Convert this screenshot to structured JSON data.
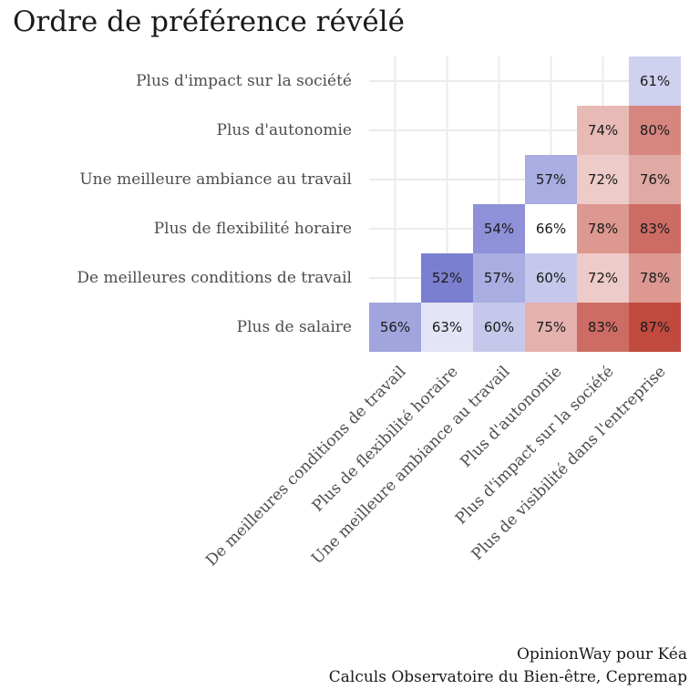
{
  "chart_data": {
    "type": "heatmap",
    "title": "Ordre de préférence révélé",
    "rows": [
      "Plus d'impact sur la société",
      "Plus d'autonomie",
      "Une meilleure ambiance au travail",
      "Plus de flexibilité horaire",
      "De meilleures conditions de travail",
      "Plus de salaire"
    ],
    "columns": [
      "De meilleures conditions de travail",
      "Plus de flexibilité horaire",
      "Une meilleure ambiance au travail",
      "Plus d'autonomie",
      "Plus d'impact sur la société",
      "Plus de visibilité dans l'entreprise"
    ],
    "values": [
      [
        null,
        null,
        null,
        null,
        null,
        61
      ],
      [
        null,
        null,
        null,
        null,
        74,
        80
      ],
      [
        null,
        null,
        null,
        57,
        72,
        76
      ],
      [
        null,
        null,
        54,
        66,
        78,
        83
      ],
      [
        null,
        52,
        57,
        60,
        72,
        78
      ],
      [
        56,
        63,
        60,
        75,
        83,
        87
      ]
    ],
    "value_suffix": "%",
    "color_scale": {
      "low": "#7b7fd0",
      "mid": "#ffffff",
      "high": "#c14a3f",
      "midpoint": 66
    },
    "grid": true
  },
  "captions": [
    "OpinionWay pour Kéa",
    "Calculs Observatoire du Bien-être, Cepremap"
  ]
}
